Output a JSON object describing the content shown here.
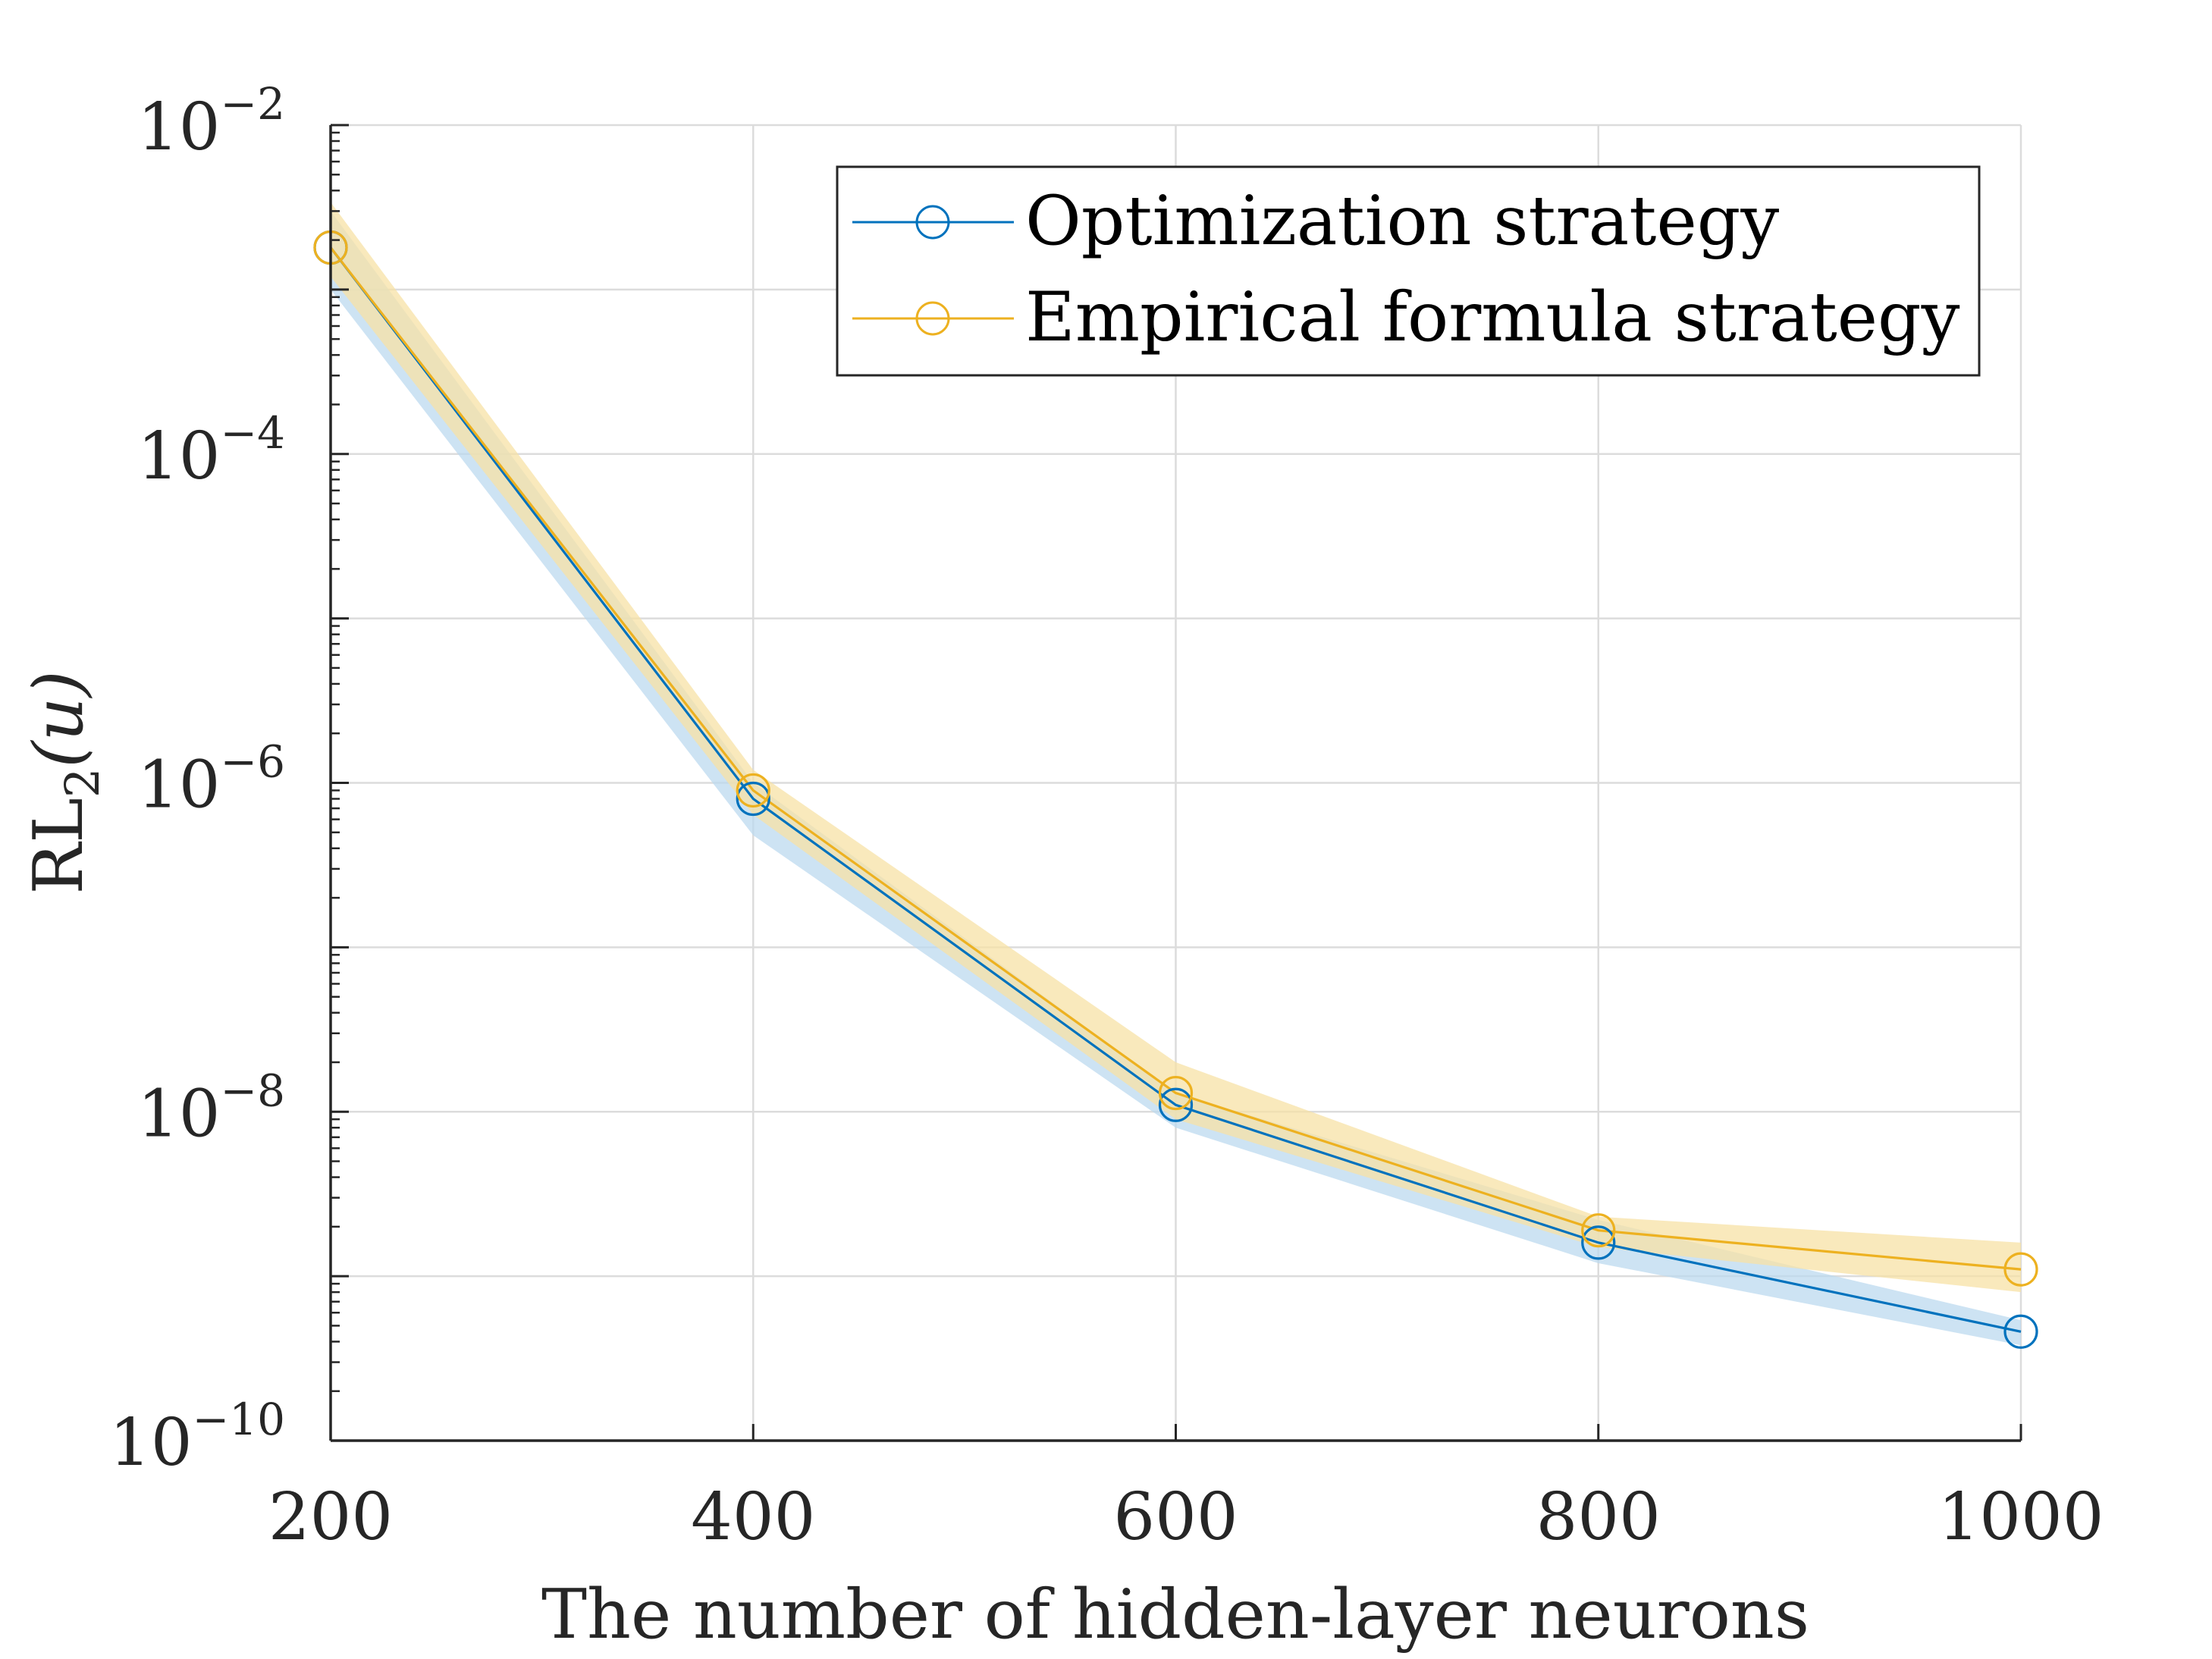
{
  "chart_data": {
    "type": "line",
    "title": "",
    "xlabel": "The number of hidden-layer neurons",
    "ylabel": {
      "base": "RL",
      "subscript": "2",
      "suffix": "(u)"
    },
    "x": [
      200,
      400,
      600,
      800,
      1000
    ],
    "xlim": [
      200,
      1000
    ],
    "xticks": [
      "200",
      "400",
      "600",
      "800",
      "1000"
    ],
    "yscale": "log",
    "ylim": [
      1e-10,
      0.01
    ],
    "yticks": [
      {
        "exp": -10,
        "label": "10",
        "sup": "−10"
      },
      {
        "exp": -8,
        "label": "10",
        "sup": "−8"
      },
      {
        "exp": -6,
        "label": "10",
        "sup": "−6"
      },
      {
        "exp": -4,
        "label": "10",
        "sup": "−4"
      },
      {
        "exp": -2,
        "label": "10",
        "sup": "−2"
      }
    ],
    "grid": true,
    "legend_position": "top-right",
    "series": [
      {
        "name": "Optimization strategy",
        "color": "#0072BD",
        "band_color": "#bcd9ef",
        "values": [
          0.0018,
          8e-07,
          1.1e-08,
          1.6e-09,
          4.6e-10
        ],
        "band_low": [
          0.001,
          4.8e-07,
          8e-09,
          1.2e-09,
          3.8e-10
        ],
        "band_high": [
          0.003,
          1e-06,
          1.3e-08,
          2.2e-09,
          5.4e-10
        ]
      },
      {
        "name": "Empirical formula strategy",
        "color": "#EDB120",
        "band_color": "#f7e2a6",
        "values": [
          0.0018,
          9e-07,
          1.3e-08,
          1.9e-09,
          1.1e-09
        ],
        "band_low": [
          0.0012,
          6.4e-07,
          9e-09,
          1.5e-09,
          8e-10
        ],
        "band_high": [
          0.0034,
          1.2e-06,
          2e-08,
          2.3e-09,
          1.6e-09
        ]
      }
    ]
  }
}
